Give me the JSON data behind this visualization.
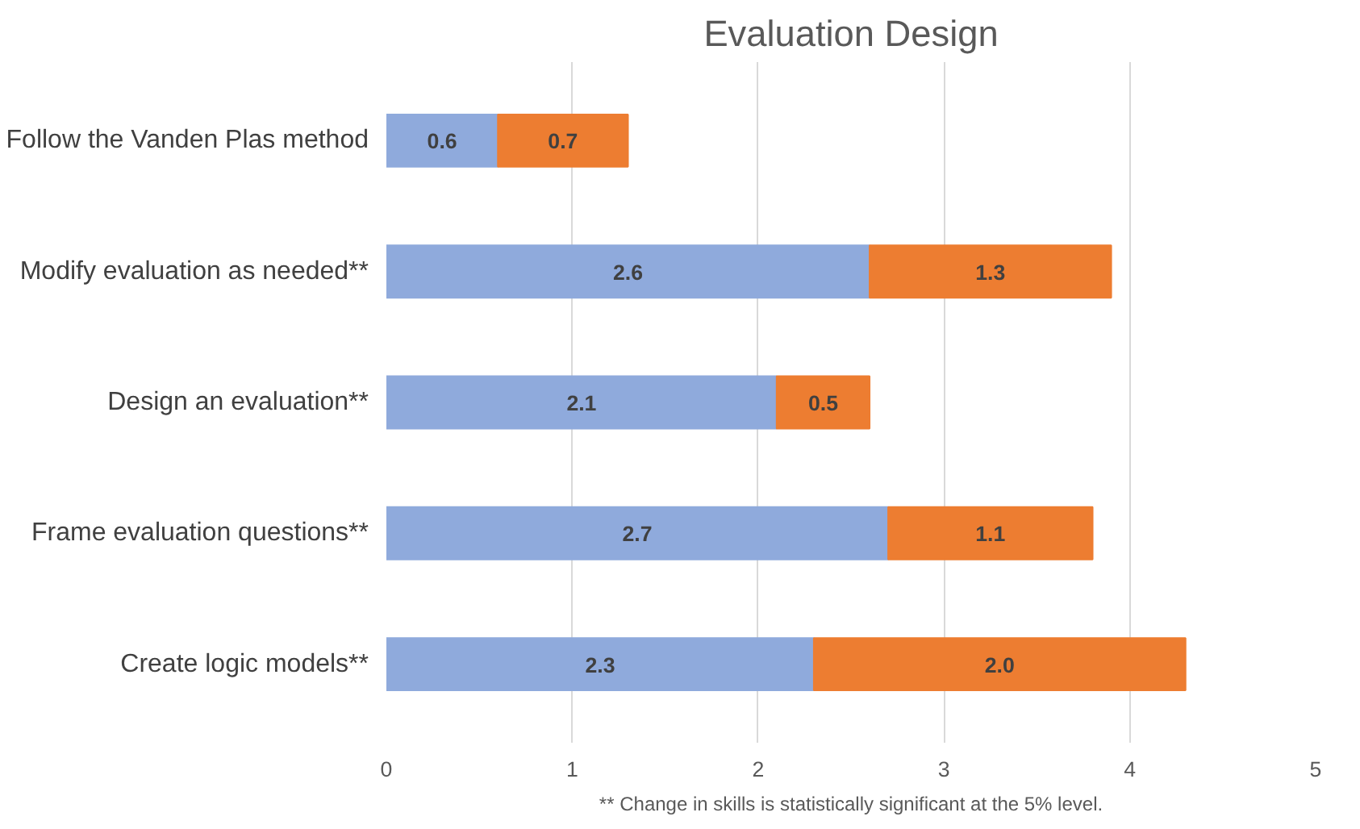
{
  "chart_data": {
    "type": "bar",
    "title": "Evaluation Design",
    "orientation": "horizontal",
    "stacked": true,
    "data_labels": true,
    "grid": "x",
    "categories": [
      "Follow the Vanden Plas method",
      "Modify evaluation as needed**",
      "Design an evaluation**",
      "Frame evaluation questions**",
      "Create logic models**"
    ],
    "series": [
      {
        "color": "#8faadc",
        "values": [
          0.6,
          2.6,
          2.1,
          2.7,
          2.3
        ]
      },
      {
        "color": "#ed7d31",
        "values": [
          0.7,
          1.3,
          0.5,
          1.1,
          2.0
        ],
        "value_labels": [
          "0.7",
          "1.3",
          "0.5",
          "1.1",
          "2.0"
        ]
      }
    ],
    "xlim": [
      0,
      5
    ],
    "xticks": [
      0,
      1,
      2,
      3,
      4,
      5
    ],
    "annotations": [
      "** Change in skills is statistically significant at the 5% level."
    ]
  }
}
